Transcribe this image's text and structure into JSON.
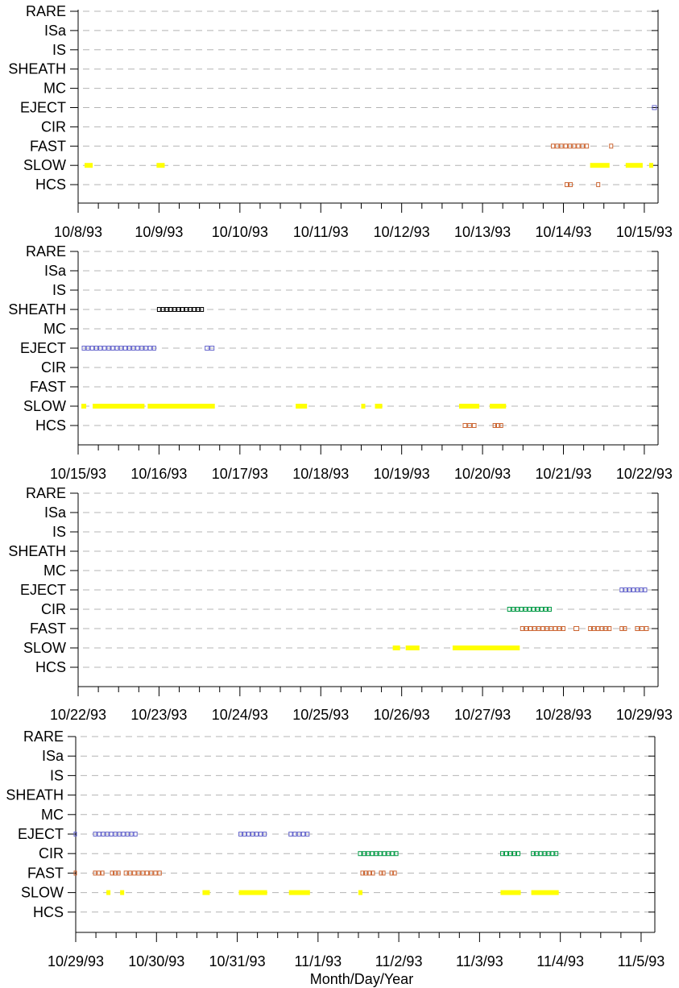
{
  "figure": {
    "xlabel": "Month/Day/Year",
    "colors": {
      "SLOW": "#ffff00",
      "FAST": "#cc6633",
      "HCS": "#cc6633",
      "EJECT": "#6666cc",
      "CIR": "#009944",
      "SHEATH": "#000000",
      "grid": "#b4b4b4",
      "axis": "#000000"
    }
  },
  "chart_data": [
    {
      "type": "timeline",
      "categories": [
        "RARE",
        "ISa",
        "IS",
        "SHEATH",
        "MC",
        "EJECT",
        "CIR",
        "FAST",
        "SLOW",
        "HCS"
      ],
      "x_tick_labels": [
        "10/8/93",
        "10/9/93",
        "10/10/93",
        "10/11/93",
        "10/12/93",
        "10/13/93",
        "10/14/93",
        "10/15/93"
      ],
      "xlim_days": [
        0,
        7.17
      ],
      "grid": "dashed horizontal",
      "intervals": {
        "EJECT": [
          [
            7.1,
            7.16
          ]
        ],
        "FAST": [
          [
            5.85,
            6.32
          ],
          [
            6.57,
            6.62
          ]
        ],
        "SLOW": [
          [
            0.08,
            0.18
          ],
          [
            0.97,
            1.07
          ],
          [
            6.33,
            6.57
          ],
          [
            6.77,
            6.98
          ],
          [
            7.06,
            7.11
          ]
        ],
        "HCS": [
          [
            6.02,
            6.12
          ],
          [
            6.41,
            6.46
          ]
        ]
      }
    },
    {
      "type": "timeline",
      "categories": [
        "RARE",
        "ISa",
        "IS",
        "SHEATH",
        "MC",
        "EJECT",
        "CIR",
        "FAST",
        "SLOW",
        "HCS"
      ],
      "x_tick_labels": [
        "10/15/93",
        "10/16/93",
        "10/17/93",
        "10/18/93",
        "10/19/93",
        "10/20/93",
        "10/21/93",
        "10/22/93"
      ],
      "xlim_days": [
        0,
        7.17
      ],
      "grid": "dashed horizontal",
      "intervals": {
        "SHEATH": [
          [
            0.98,
            1.56
          ]
        ],
        "EJECT": [
          [
            0.05,
            0.97
          ],
          [
            1.57,
            1.69
          ]
        ],
        "SLOW": [
          [
            0.04,
            0.1
          ],
          [
            0.18,
            0.82
          ],
          [
            0.86,
            1.69
          ],
          [
            2.69,
            2.83
          ],
          [
            3.5,
            3.55
          ],
          [
            3.67,
            3.76
          ],
          [
            4.71,
            4.96
          ],
          [
            5.09,
            5.29
          ]
        ],
        "HCS": [
          [
            4.76,
            4.93
          ],
          [
            5.13,
            5.26
          ]
        ]
      }
    },
    {
      "type": "timeline",
      "categories": [
        "RARE",
        "ISa",
        "IS",
        "SHEATH",
        "MC",
        "EJECT",
        "CIR",
        "FAST",
        "SLOW",
        "HCS"
      ],
      "x_tick_labels": [
        "10/22/93",
        "10/23/93",
        "10/24/93",
        "10/25/93",
        "10/26/93",
        "10/27/93",
        "10/28/93",
        "10/29/93"
      ],
      "xlim_days": [
        0,
        7.17
      ],
      "grid": "dashed horizontal",
      "intervals": {
        "EJECT": [
          [
            6.7,
            7.04
          ]
        ],
        "CIR": [
          [
            5.31,
            5.86
          ]
        ],
        "FAST": [
          [
            5.47,
            6.03
          ],
          [
            6.13,
            6.2
          ],
          [
            6.31,
            6.6
          ],
          [
            6.7,
            6.79
          ],
          [
            6.89,
            7.06
          ]
        ],
        "SLOW": [
          [
            3.89,
            3.98
          ],
          [
            4.05,
            4.22
          ],
          [
            4.63,
            5.46
          ]
        ]
      }
    },
    {
      "type": "timeline",
      "categories": [
        "RARE",
        "ISa",
        "IS",
        "SHEATH",
        "MC",
        "EJECT",
        "CIR",
        "FAST",
        "SLOW",
        "HCS"
      ],
      "x_tick_labels": [
        "10/29/93",
        "10/30/93",
        "10/31/93",
        "11/1/93",
        "11/2/93",
        "11/3/93",
        "11/4/93",
        "11/5/93"
      ],
      "xlim_days": [
        0,
        7.17
      ],
      "grid": "dashed horizontal",
      "intervals": {
        "EJECT": [
          [
            -0.02,
            0.02
          ],
          [
            0.22,
            0.77
          ],
          [
            2.02,
            2.37
          ],
          [
            2.64,
            2.9
          ]
        ],
        "CIR": [
          [
            3.5,
            4.0
          ],
          [
            5.26,
            5.51
          ],
          [
            5.64,
            5.98
          ]
        ],
        "FAST": [
          [
            -0.02,
            0.02
          ],
          [
            0.22,
            0.36
          ],
          [
            0.43,
            0.56
          ],
          [
            0.6,
            1.07
          ],
          [
            3.53,
            3.71
          ],
          [
            3.76,
            3.84
          ],
          [
            3.89,
            3.98
          ]
        ],
        "SLOW": [
          [
            0.38,
            0.43
          ],
          [
            0.55,
            0.6
          ],
          [
            1.57,
            1.66
          ],
          [
            2.02,
            2.37
          ],
          [
            2.64,
            2.9
          ],
          [
            3.5,
            3.55
          ],
          [
            5.26,
            5.51
          ],
          [
            5.64,
            5.98
          ]
        ]
      }
    }
  ]
}
